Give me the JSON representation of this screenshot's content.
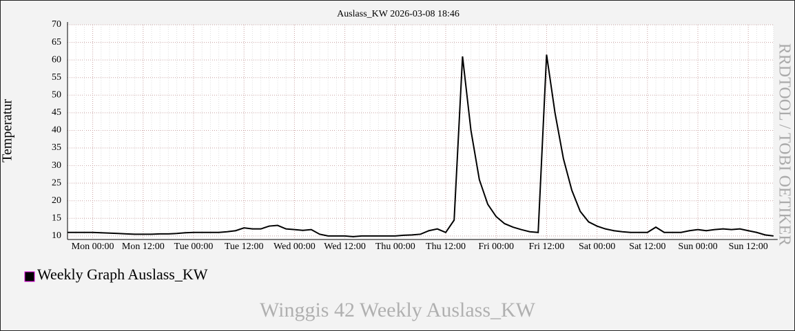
{
  "chart_data": {
    "type": "line",
    "title": "Auslass_KW 2026-03-08 18:46",
    "y_label": "Temperatur",
    "footer": "Winggis 42 Weekly Auslass_KW",
    "watermark": "RRDTOOL / TOBI OETIKER",
    "categories": [
      null,
      null,
      null,
      "Mon 00:00",
      null,
      null,
      null,
      null,
      null,
      "Mon 12:00",
      null,
      null,
      null,
      null,
      null,
      "Tue 00:00",
      null,
      null,
      null,
      null,
      null,
      "Tue 12:00",
      null,
      null,
      null,
      null,
      null,
      "Wed 00:00",
      null,
      null,
      null,
      null,
      null,
      "Wed 12:00",
      null,
      null,
      null,
      null,
      null,
      "Thu 00:00",
      null,
      null,
      null,
      null,
      null,
      "Thu 12:00",
      null,
      null,
      null,
      null,
      null,
      "Fri 00:00",
      null,
      null,
      null,
      null,
      null,
      "Fri 12:00",
      null,
      null,
      null,
      null,
      null,
      "Sat 00:00",
      null,
      null,
      null,
      null,
      null,
      "Sat 12:00",
      null,
      null,
      null,
      null,
      null,
      "Sun 00:00",
      null,
      null,
      null,
      null,
      null,
      "Sun 12:00",
      null,
      null,
      null
    ],
    "series": [
      {
        "name": "Weekly Graph Auslass_KW",
        "color": "#000000",
        "values": [
          11,
          11,
          11,
          11,
          10.9,
          10.8,
          10.7,
          10.6,
          10.5,
          10.5,
          10.5,
          10.6,
          10.6,
          10.7,
          10.9,
          11,
          11,
          11,
          11,
          11.2,
          11.5,
          12.3,
          12,
          12,
          12.8,
          13,
          12,
          11.8,
          11.6,
          11.8,
          10.5,
          10,
          10,
          10,
          9.8,
          10,
          10,
          10,
          10,
          10,
          10.2,
          10.3,
          10.5,
          11.5,
          12,
          11,
          14.5,
          61,
          40,
          26,
          19,
          15.5,
          13.5,
          12.5,
          11.8,
          11.2,
          11,
          61.5,
          45,
          32,
          23,
          17,
          14,
          12.8,
          12,
          11.5,
          11.2,
          11,
          11,
          11,
          12.5,
          11,
          11,
          11,
          11.5,
          11.8,
          11.5,
          11.8,
          12,
          11.8,
          12,
          11.5,
          11,
          10.3,
          10
        ]
      }
    ],
    "ylim": [
      9,
      70
    ],
    "yticks": [
      10,
      15,
      20,
      25,
      30,
      35,
      40,
      45,
      50,
      55,
      60,
      65,
      70
    ],
    "grid": true
  }
}
